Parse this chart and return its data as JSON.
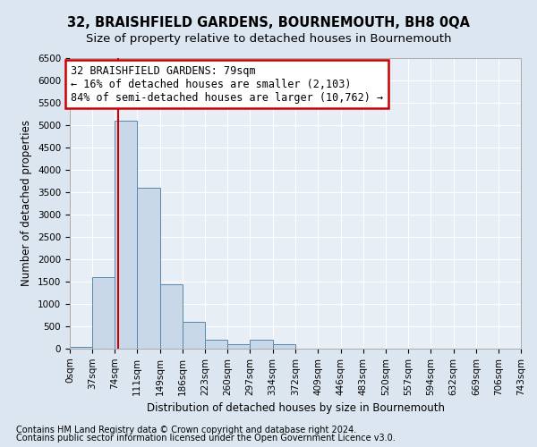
{
  "title": "32, BRAISHFIELD GARDENS, BOURNEMOUTH, BH8 0QA",
  "subtitle": "Size of property relative to detached houses in Bournemouth",
  "xlabel": "Distribution of detached houses by size in Bournemouth",
  "ylabel": "Number of detached properties",
  "bin_edges": [
    0,
    37,
    74,
    111,
    149,
    186,
    223,
    260,
    297,
    334,
    372,
    409,
    446,
    483,
    520,
    557,
    594,
    632,
    669,
    706,
    743
  ],
  "bin_labels": [
    "0sqm",
    "37sqm",
    "74sqm",
    "111sqm",
    "149sqm",
    "186sqm",
    "223sqm",
    "260sqm",
    "297sqm",
    "334sqm",
    "372sqm",
    "409sqm",
    "446sqm",
    "483sqm",
    "520sqm",
    "557sqm",
    "594sqm",
    "632sqm",
    "669sqm",
    "706sqm",
    "743sqm"
  ],
  "bar_heights": [
    50,
    1600,
    5100,
    3600,
    1450,
    600,
    200,
    100,
    200,
    100,
    0,
    0,
    0,
    0,
    0,
    0,
    0,
    0,
    0,
    0
  ],
  "bar_color": "#c8d8e8",
  "bar_edge_color": "#5588aa",
  "red_line_x": 79,
  "annotation_line1": "32 BRAISHFIELD GARDENS: 79sqm",
  "annotation_line2": "← 16% of detached houses are smaller (2,103)",
  "annotation_line3": "84% of semi-detached houses are larger (10,762) →",
  "annotation_box_color": "#ffffff",
  "annotation_border_color": "#cc0000",
  "red_line_color": "#cc0000",
  "ylim": [
    0,
    6500
  ],
  "yticks": [
    0,
    500,
    1000,
    1500,
    2000,
    2500,
    3000,
    3500,
    4000,
    4500,
    5000,
    5500,
    6000,
    6500
  ],
  "footer_line1": "Contains HM Land Registry data © Crown copyright and database right 2024.",
  "footer_line2": "Contains public sector information licensed under the Open Government Licence v3.0.",
  "bg_color": "#dce6f0",
  "plot_bg_color": "#e8eef5",
  "title_fontsize": 10.5,
  "subtitle_fontsize": 9.5,
  "axis_label_fontsize": 8.5,
  "tick_fontsize": 7.5,
  "footer_fontsize": 7,
  "annotation_fontsize": 8.5
}
